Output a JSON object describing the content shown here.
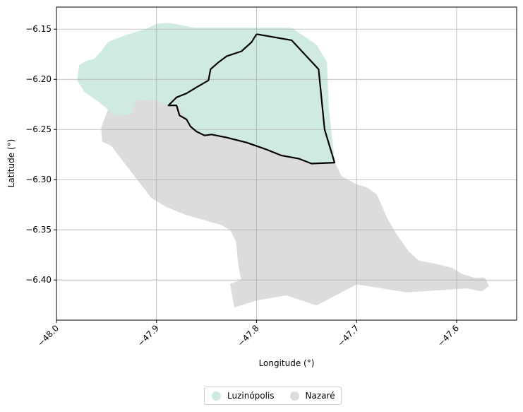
{
  "chart_data": {
    "type": "map",
    "xlabel": "Longitude (°)",
    "ylabel": "Latitude (°)",
    "xlim": [
      -48.0,
      -47.54
    ],
    "ylim": [
      -6.44,
      -6.128
    ],
    "xticks": [
      {
        "value": -48.0,
        "label": "−48.0"
      },
      {
        "value": -47.9,
        "label": "−47.9"
      },
      {
        "value": -47.8,
        "label": "−47.8"
      },
      {
        "value": -47.7,
        "label": "−47.7"
      },
      {
        "value": -47.6,
        "label": "−47.6"
      }
    ],
    "yticks": [
      {
        "value": -6.15,
        "label": "−6.15"
      },
      {
        "value": -6.2,
        "label": "−6.20"
      },
      {
        "value": -6.25,
        "label": "−6.25"
      },
      {
        "value": -6.3,
        "label": "−6.30"
      },
      {
        "value": -6.35,
        "label": "−6.35"
      },
      {
        "value": -6.4,
        "label": "−6.40"
      }
    ],
    "grid": true,
    "legend_position": "bottom-center",
    "regions": [
      {
        "name": "Luzinópolis",
        "color": "#cfebe0",
        "polygon": [
          [
            -47.979,
            -6.201
          ],
          [
            -47.977,
            -6.186
          ],
          [
            -47.97,
            -6.182
          ],
          [
            -47.962,
            -6.18
          ],
          [
            -47.955,
            -6.172
          ],
          [
            -47.948,
            -6.163
          ],
          [
            -47.93,
            -6.156
          ],
          [
            -47.91,
            -6.15
          ],
          [
            -47.9,
            -6.145
          ],
          [
            -47.888,
            -6.144
          ],
          [
            -47.877,
            -6.146
          ],
          [
            -47.862,
            -6.149
          ],
          [
            -47.82,
            -6.149
          ],
          [
            -47.765,
            -6.149
          ],
          [
            -47.74,
            -6.166
          ],
          [
            -47.73,
            -6.183
          ],
          [
            -47.728,
            -6.23
          ],
          [
            -47.722,
            -6.283
          ],
          [
            -47.745,
            -6.284
          ],
          [
            -47.758,
            -6.279
          ],
          [
            -47.79,
            -6.27
          ],
          [
            -47.81,
            -6.263
          ],
          [
            -47.83,
            -6.258
          ],
          [
            -47.852,
            -6.256
          ],
          [
            -47.868,
            -6.247
          ],
          [
            -47.872,
            -6.237
          ],
          [
            -47.88,
            -6.226
          ],
          [
            -47.888,
            -6.226
          ],
          [
            -47.905,
            -6.22
          ],
          [
            -47.92,
            -6.222
          ],
          [
            -47.925,
            -6.235
          ],
          [
            -47.944,
            -6.237
          ],
          [
            -47.948,
            -6.23
          ],
          [
            -47.958,
            -6.222
          ],
          [
            -47.972,
            -6.212
          ]
        ]
      },
      {
        "name": "Nazaré",
        "color": "#dcdcdc",
        "polygon": [
          [
            -47.948,
            -6.23
          ],
          [
            -47.944,
            -6.237
          ],
          [
            -47.925,
            -6.235
          ],
          [
            -47.92,
            -6.222
          ],
          [
            -47.905,
            -6.22
          ],
          [
            -47.888,
            -6.226
          ],
          [
            -47.88,
            -6.226
          ],
          [
            -47.872,
            -6.237
          ],
          [
            -47.868,
            -6.247
          ],
          [
            -47.852,
            -6.256
          ],
          [
            -47.83,
            -6.258
          ],
          [
            -47.81,
            -6.263
          ],
          [
            -47.79,
            -6.27
          ],
          [
            -47.758,
            -6.279
          ],
          [
            -47.745,
            -6.284
          ],
          [
            -47.722,
            -6.283
          ],
          [
            -47.715,
            -6.297
          ],
          [
            -47.7,
            -6.305
          ],
          [
            -47.69,
            -6.308
          ],
          [
            -47.68,
            -6.315
          ],
          [
            -47.67,
            -6.338
          ],
          [
            -47.66,
            -6.355
          ],
          [
            -47.648,
            -6.372
          ],
          [
            -47.638,
            -6.381
          ],
          [
            -47.622,
            -6.384
          ],
          [
            -47.605,
            -6.388
          ],
          [
            -47.595,
            -6.394
          ],
          [
            -47.583,
            -6.398
          ],
          [
            -47.572,
            -6.398
          ],
          [
            -47.568,
            -6.406
          ],
          [
            -47.575,
            -6.411
          ],
          [
            -47.59,
            -6.408
          ],
          [
            -47.65,
            -6.412
          ],
          [
            -47.7,
            -6.404
          ],
          [
            -47.74,
            -6.425
          ],
          [
            -47.77,
            -6.415
          ],
          [
            -47.8,
            -6.42
          ],
          [
            -47.822,
            -6.427
          ],
          [
            -47.826,
            -6.404
          ],
          [
            -47.815,
            -6.4
          ],
          [
            -47.818,
            -6.385
          ],
          [
            -47.82,
            -6.362
          ],
          [
            -47.826,
            -6.35
          ],
          [
            -47.835,
            -6.345
          ],
          [
            -47.852,
            -6.34
          ],
          [
            -47.87,
            -6.335
          ],
          [
            -47.89,
            -6.327
          ],
          [
            -47.905,
            -6.318
          ],
          [
            -47.925,
            -6.292
          ],
          [
            -47.945,
            -6.266
          ],
          [
            -47.954,
            -6.262
          ],
          [
            -47.955,
            -6.248
          ]
        ]
      }
    ],
    "outline": {
      "color": "#000000",
      "path": [
        [
          -47.8,
          -6.155
        ],
        [
          -47.765,
          -6.161
        ],
        [
          -47.738,
          -6.19
        ],
        [
          -47.732,
          -6.25
        ],
        [
          -47.722,
          -6.283
        ],
        [
          -47.745,
          -6.284
        ],
        [
          -47.758,
          -6.279
        ],
        [
          -47.775,
          -6.276
        ],
        [
          -47.79,
          -6.27
        ],
        [
          -47.81,
          -6.263
        ],
        [
          -47.83,
          -6.258
        ],
        [
          -47.845,
          -6.255
        ],
        [
          -47.852,
          -6.256
        ],
        [
          -47.86,
          -6.252
        ],
        [
          -47.866,
          -6.247
        ],
        [
          -47.87,
          -6.24
        ],
        [
          -47.877,
          -6.236
        ],
        [
          -47.88,
          -6.226
        ],
        [
          -47.888,
          -6.226
        ],
        [
          -47.88,
          -6.218
        ],
        [
          -47.87,
          -6.214
        ],
        [
          -47.86,
          -6.208
        ],
        [
          -47.848,
          -6.201
        ],
        [
          -47.846,
          -6.19
        ],
        [
          -47.838,
          -6.183
        ],
        [
          -47.83,
          -6.177
        ],
        [
          -47.815,
          -6.172
        ],
        [
          -47.805,
          -6.163
        ],
        [
          -47.8,
          -6.155
        ]
      ]
    }
  },
  "legend": {
    "items": [
      {
        "label": "Luzinópolis",
        "color": "#cfebe0"
      },
      {
        "label": "Nazaré",
        "color": "#dcdcdc"
      }
    ]
  }
}
